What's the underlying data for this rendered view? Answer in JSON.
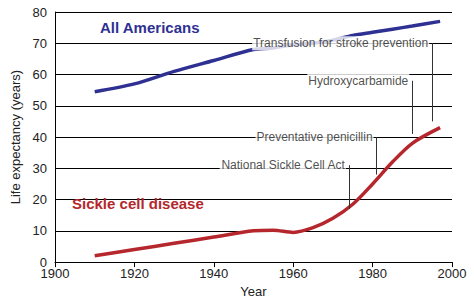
{
  "chart_data": {
    "type": "line",
    "x_label": "Year",
    "y_label": "Life expectancy (years)",
    "x": [
      1910,
      1920,
      1930,
      1940,
      1950,
      1955,
      1960,
      1965,
      1970,
      1975,
      1980,
      1985,
      1990,
      1997
    ],
    "series": [
      {
        "name": "All Americans",
        "color": "#2e3192",
        "values": [
          54.5,
          57,
          61,
          64.5,
          68,
          68.5,
          69.5,
          70,
          71,
          72.5,
          73.5,
          74.5,
          75.5,
          77
        ]
      },
      {
        "name": "Sickle cell disease",
        "color": "#b5272d",
        "values": [
          2,
          4,
          6,
          8,
          10,
          10.2,
          9.5,
          11,
          14,
          18.5,
          25,
          32,
          38,
          43
        ]
      }
    ],
    "annotations": [
      {
        "text": "National Sickle Cell Act",
        "x": 1974,
        "y": 31,
        "y_end": 17
      },
      {
        "text": "Preventative penicillin",
        "x": 1981,
        "y": 40,
        "y_end": 28
      },
      {
        "text": "Hydroxycarbamide",
        "x": 1990,
        "y": 58,
        "y_end": 41
      },
      {
        "text": "Transfusion for stroke prevention",
        "x": 1995,
        "y": 70,
        "y_end": 45
      }
    ],
    "xlim": [
      1900,
      2000
    ],
    "xticks": [
      1900,
      1920,
      1940,
      1960,
      1980,
      2000
    ],
    "ylim": [
      0,
      80
    ],
    "yticks": [
      0,
      10,
      20,
      30,
      40,
      50,
      60,
      70,
      80
    ],
    "grid": true
  }
}
